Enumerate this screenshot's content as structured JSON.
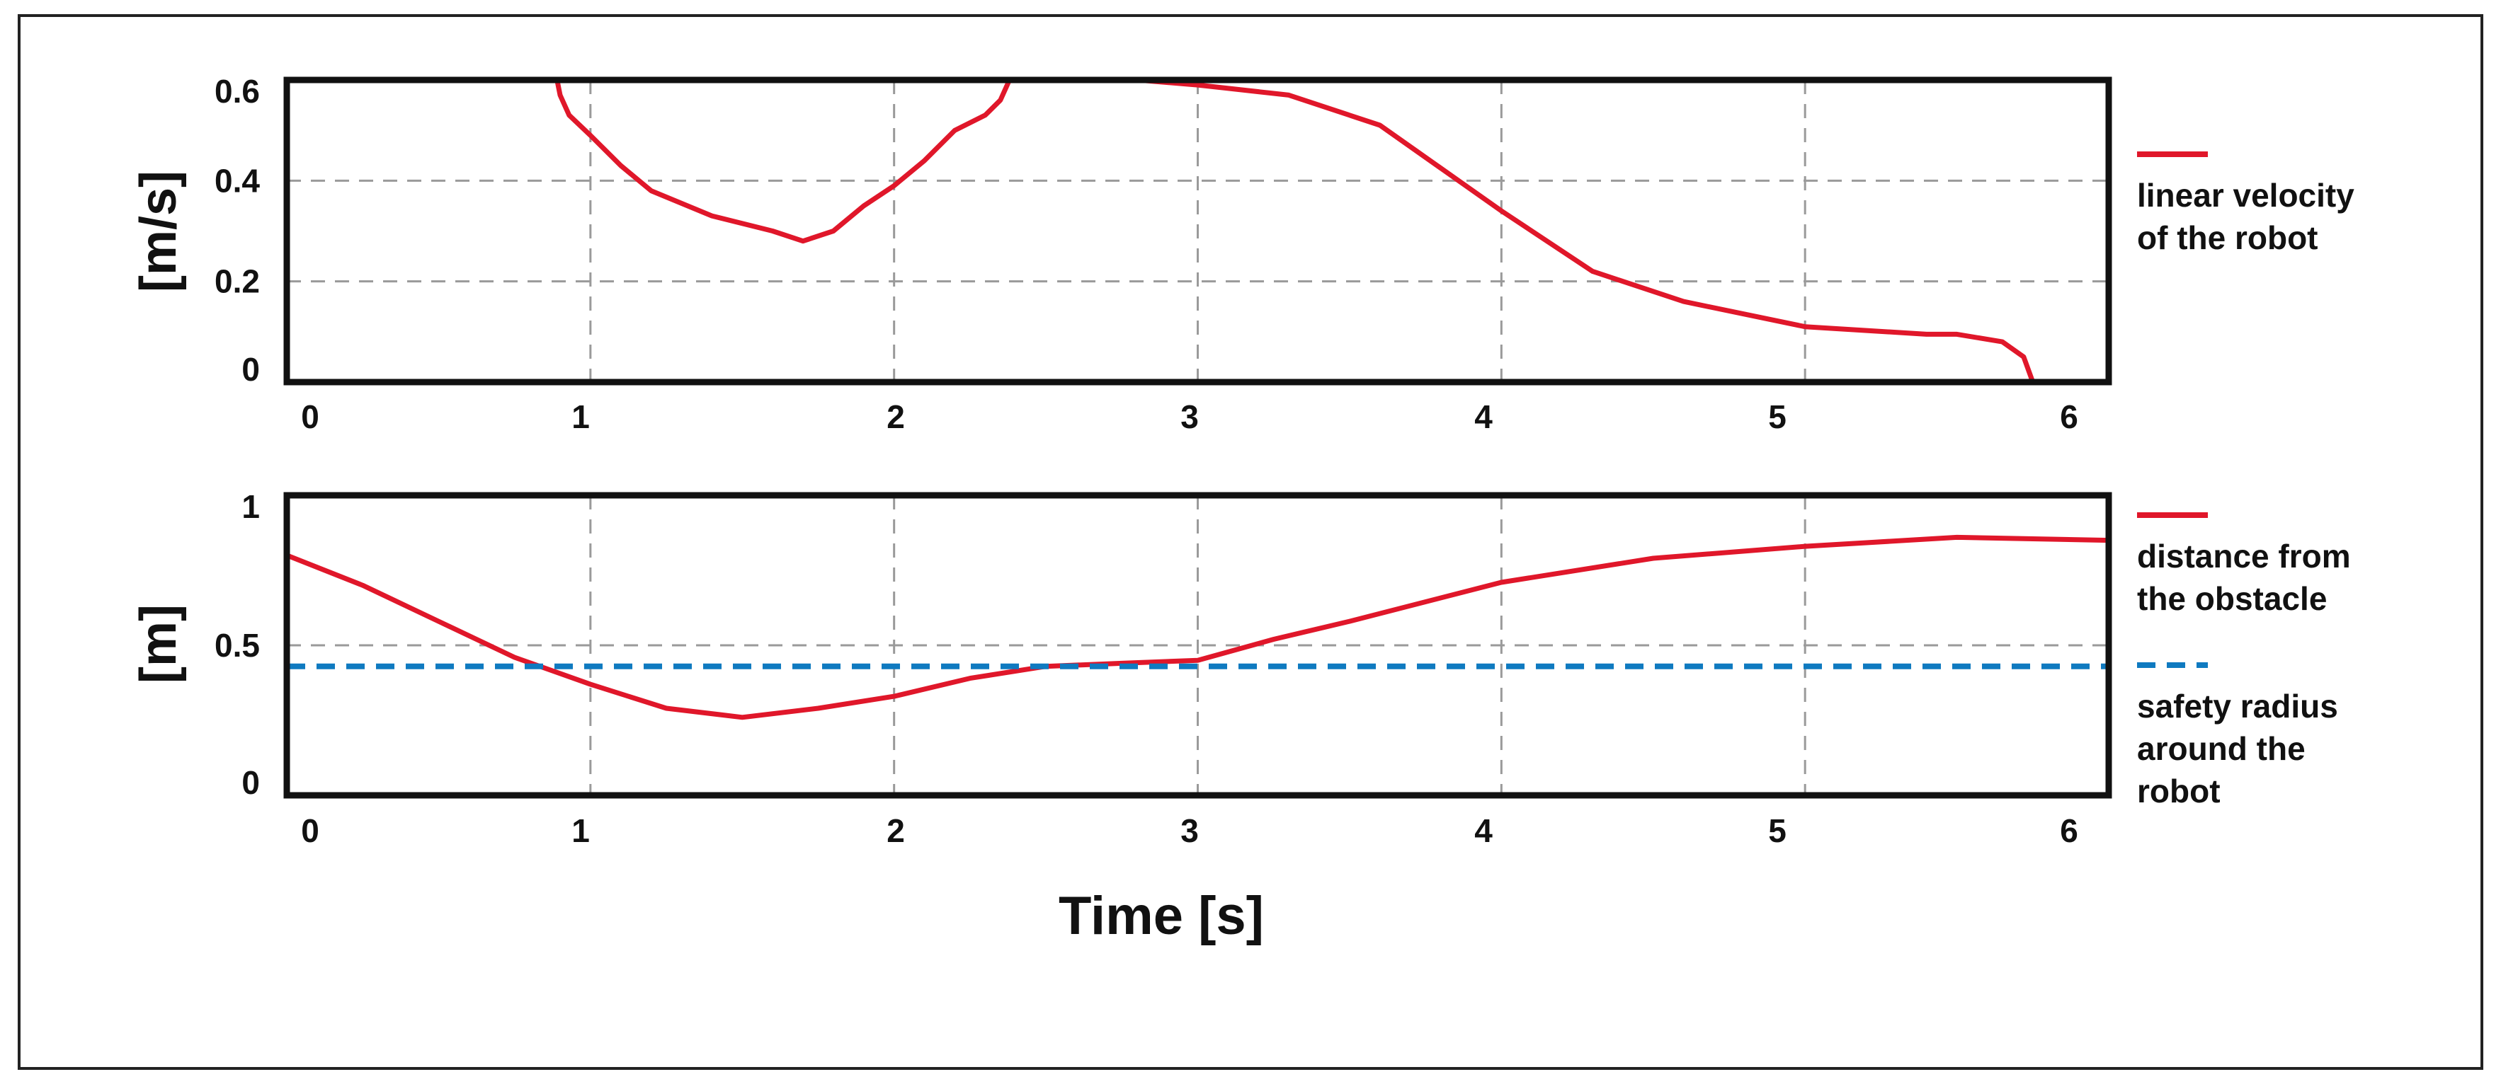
{
  "chart_data": [
    {
      "type": "line",
      "ylabel": "[m/s]",
      "xlim": [
        0,
        6
      ],
      "ylim": [
        0,
        0.6
      ],
      "x_ticks": [
        "0",
        "1",
        "2",
        "3",
        "4",
        "5",
        "6"
      ],
      "y_ticks": [
        "0",
        "0.2",
        "0.4",
        "0.6"
      ],
      "grid": true,
      "legend_position": "right",
      "series": [
        {
          "name": "linear velocity of the robot",
          "legend_lines": [
            "linear velocity",
            "of the robot"
          ],
          "style": "solid",
          "color": "#e0172a",
          "x": [
            0,
            0.89,
            0.9,
            0.93,
            1.0,
            1.1,
            1.2,
            1.4,
            1.6,
            1.7,
            1.8,
            1.9,
            2.0,
            2.1,
            2.2,
            2.3,
            2.35,
            2.38,
            2.5,
            2.8,
            3.0,
            3.3,
            3.6,
            4.0,
            4.3,
            4.6,
            5.0,
            5.4,
            5.5,
            5.65,
            5.72,
            5.75,
            6.0
          ],
          "y": [
            0.6,
            0.6,
            0.57,
            0.53,
            0.49,
            0.43,
            0.38,
            0.33,
            0.3,
            0.28,
            0.3,
            0.35,
            0.39,
            0.44,
            0.5,
            0.53,
            0.56,
            0.6,
            0.6,
            0.6,
            0.59,
            0.57,
            0.51,
            0.34,
            0.22,
            0.16,
            0.11,
            0.095,
            0.095,
            0.08,
            0.05,
            0.0,
            0.0
          ]
        }
      ]
    },
    {
      "type": "line",
      "ylabel": "[m]",
      "xlabel": "Time [s]",
      "xlim": [
        0,
        6
      ],
      "ylim": [
        0,
        1
      ],
      "x_ticks": [
        "0",
        "1",
        "2",
        "3",
        "4",
        "5",
        "6"
      ],
      "y_ticks": [
        "0",
        "0.5",
        "1"
      ],
      "grid": true,
      "legend_position": "right",
      "series": [
        {
          "name": "distance from the obstacle",
          "legend_lines": [
            "distance from",
            "the obstacle"
          ],
          "style": "solid",
          "color": "#e0172a",
          "x": [
            0,
            0.25,
            0.5,
            0.75,
            1.0,
            1.25,
            1.5,
            1.75,
            2.0,
            2.25,
            2.5,
            2.75,
            3.0,
            3.25,
            3.5,
            4.0,
            4.5,
            5.0,
            5.5,
            6.0
          ],
          "y": [
            0.8,
            0.7,
            0.58,
            0.46,
            0.37,
            0.29,
            0.26,
            0.29,
            0.33,
            0.39,
            0.43,
            0.44,
            0.45,
            0.52,
            0.58,
            0.71,
            0.79,
            0.83,
            0.86,
            0.85
          ]
        },
        {
          "name": "safety radius around the robot",
          "legend_lines": [
            "safety radius",
            "around the",
            "robot"
          ],
          "style": "dashed",
          "color": "#0f7ac0",
          "x": [
            0,
            6
          ],
          "y": [
            0.43,
            0.43
          ]
        }
      ]
    }
  ],
  "xlabel": "Time [s]"
}
